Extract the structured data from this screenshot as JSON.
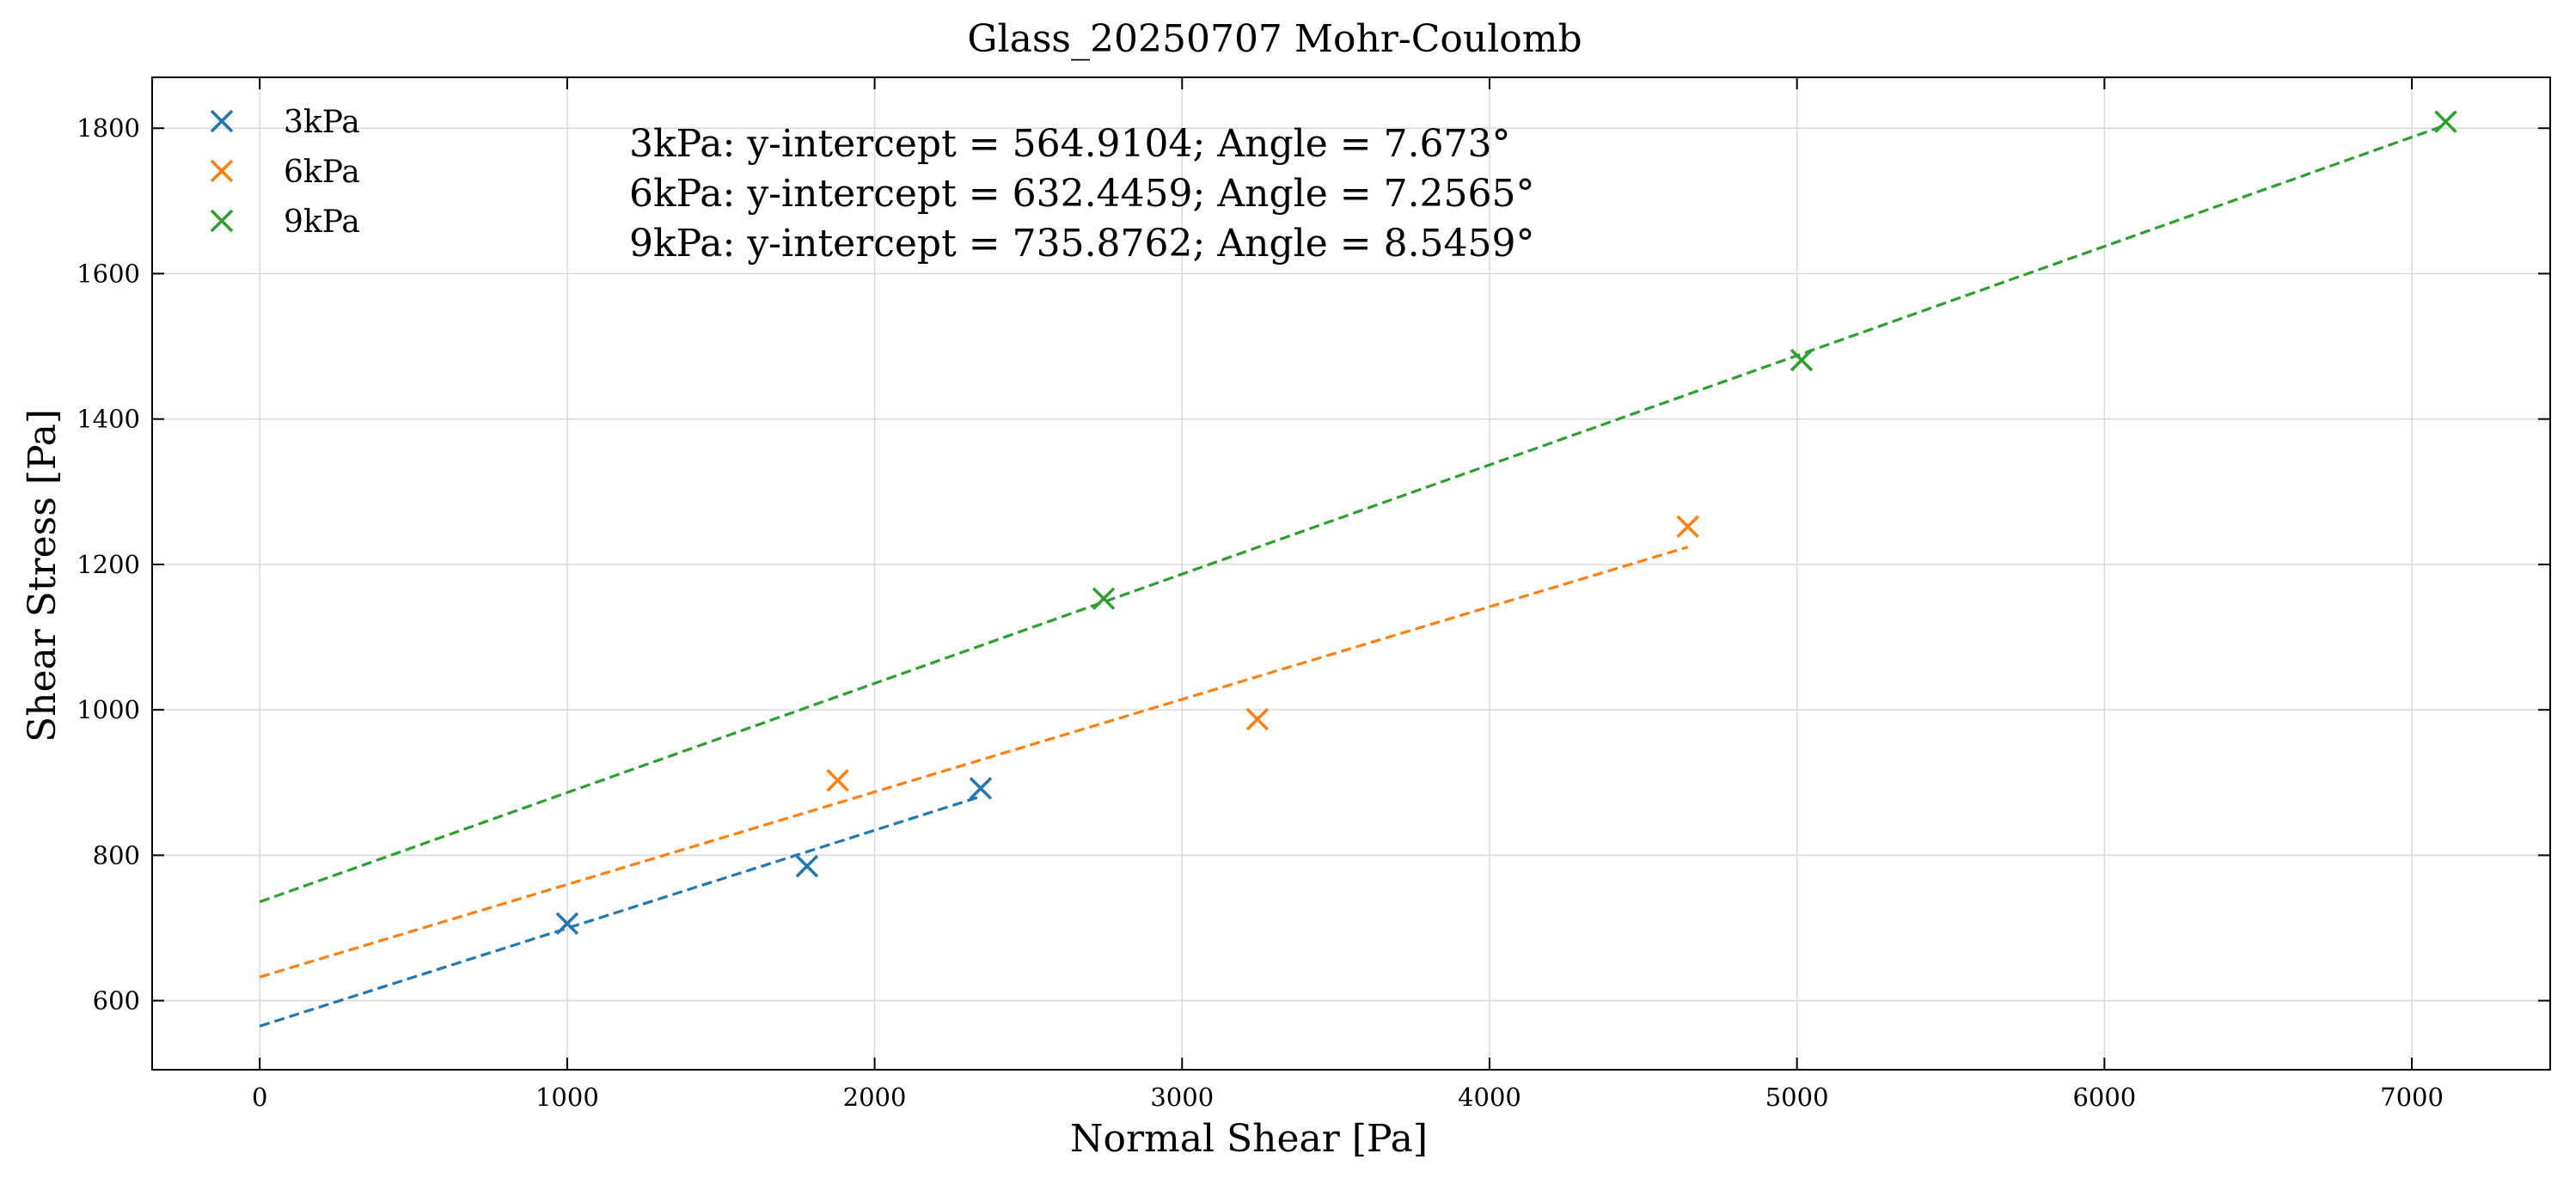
{
  "chart_data": {
    "type": "scatter",
    "title": "Glass_20250707 Mohr-Coulomb",
    "xlabel": "Normal Shear [Pa]",
    "ylabel": "Shear Stress [Pa]",
    "xlim": [
      -350,
      7450
    ],
    "ylim": [
      505,
      1870
    ],
    "xticks": [
      0,
      1000,
      2000,
      3000,
      4000,
      5000,
      6000,
      7000
    ],
    "yticks": [
      600,
      800,
      1000,
      1200,
      1400,
      1600,
      1800
    ],
    "grid": true,
    "legend_position": "top-left",
    "series": [
      {
        "name": "3kPa",
        "color": "#1f77b4",
        "marker": "x",
        "x": [
          1000,
          1780,
          2345
        ],
        "y": [
          706,
          785,
          892
        ],
        "fit": {
          "intercept": 564.9104,
          "angle_deg": 7.673,
          "x_range": [
            0,
            2345
          ]
        }
      },
      {
        "name": "6kPa",
        "color": "#ff7f0e",
        "marker": "x",
        "x": [
          1880,
          3245,
          4645
        ],
        "y": [
          903,
          987,
          1252
        ],
        "fit": {
          "intercept": 632.4459,
          "angle_deg": 7.2565,
          "x_range": [
            0,
            4645
          ]
        }
      },
      {
        "name": "9kPa",
        "color": "#2ca02c",
        "marker": "x",
        "x": [
          2745,
          5015,
          7110
        ],
        "y": [
          1153,
          1481,
          1809
        ],
        "fit": {
          "intercept": 735.8762,
          "angle_deg": 8.5459,
          "x_range": [
            0,
            7110
          ]
        }
      }
    ],
    "annotations": [
      "3kPa: y-intercept = 564.9104; Angle = 7.673°",
      "6kPa: y-intercept = 632.4459; Angle = 7.2565°",
      "9kPa: y-intercept = 735.8762; Angle = 8.5459°"
    ]
  }
}
